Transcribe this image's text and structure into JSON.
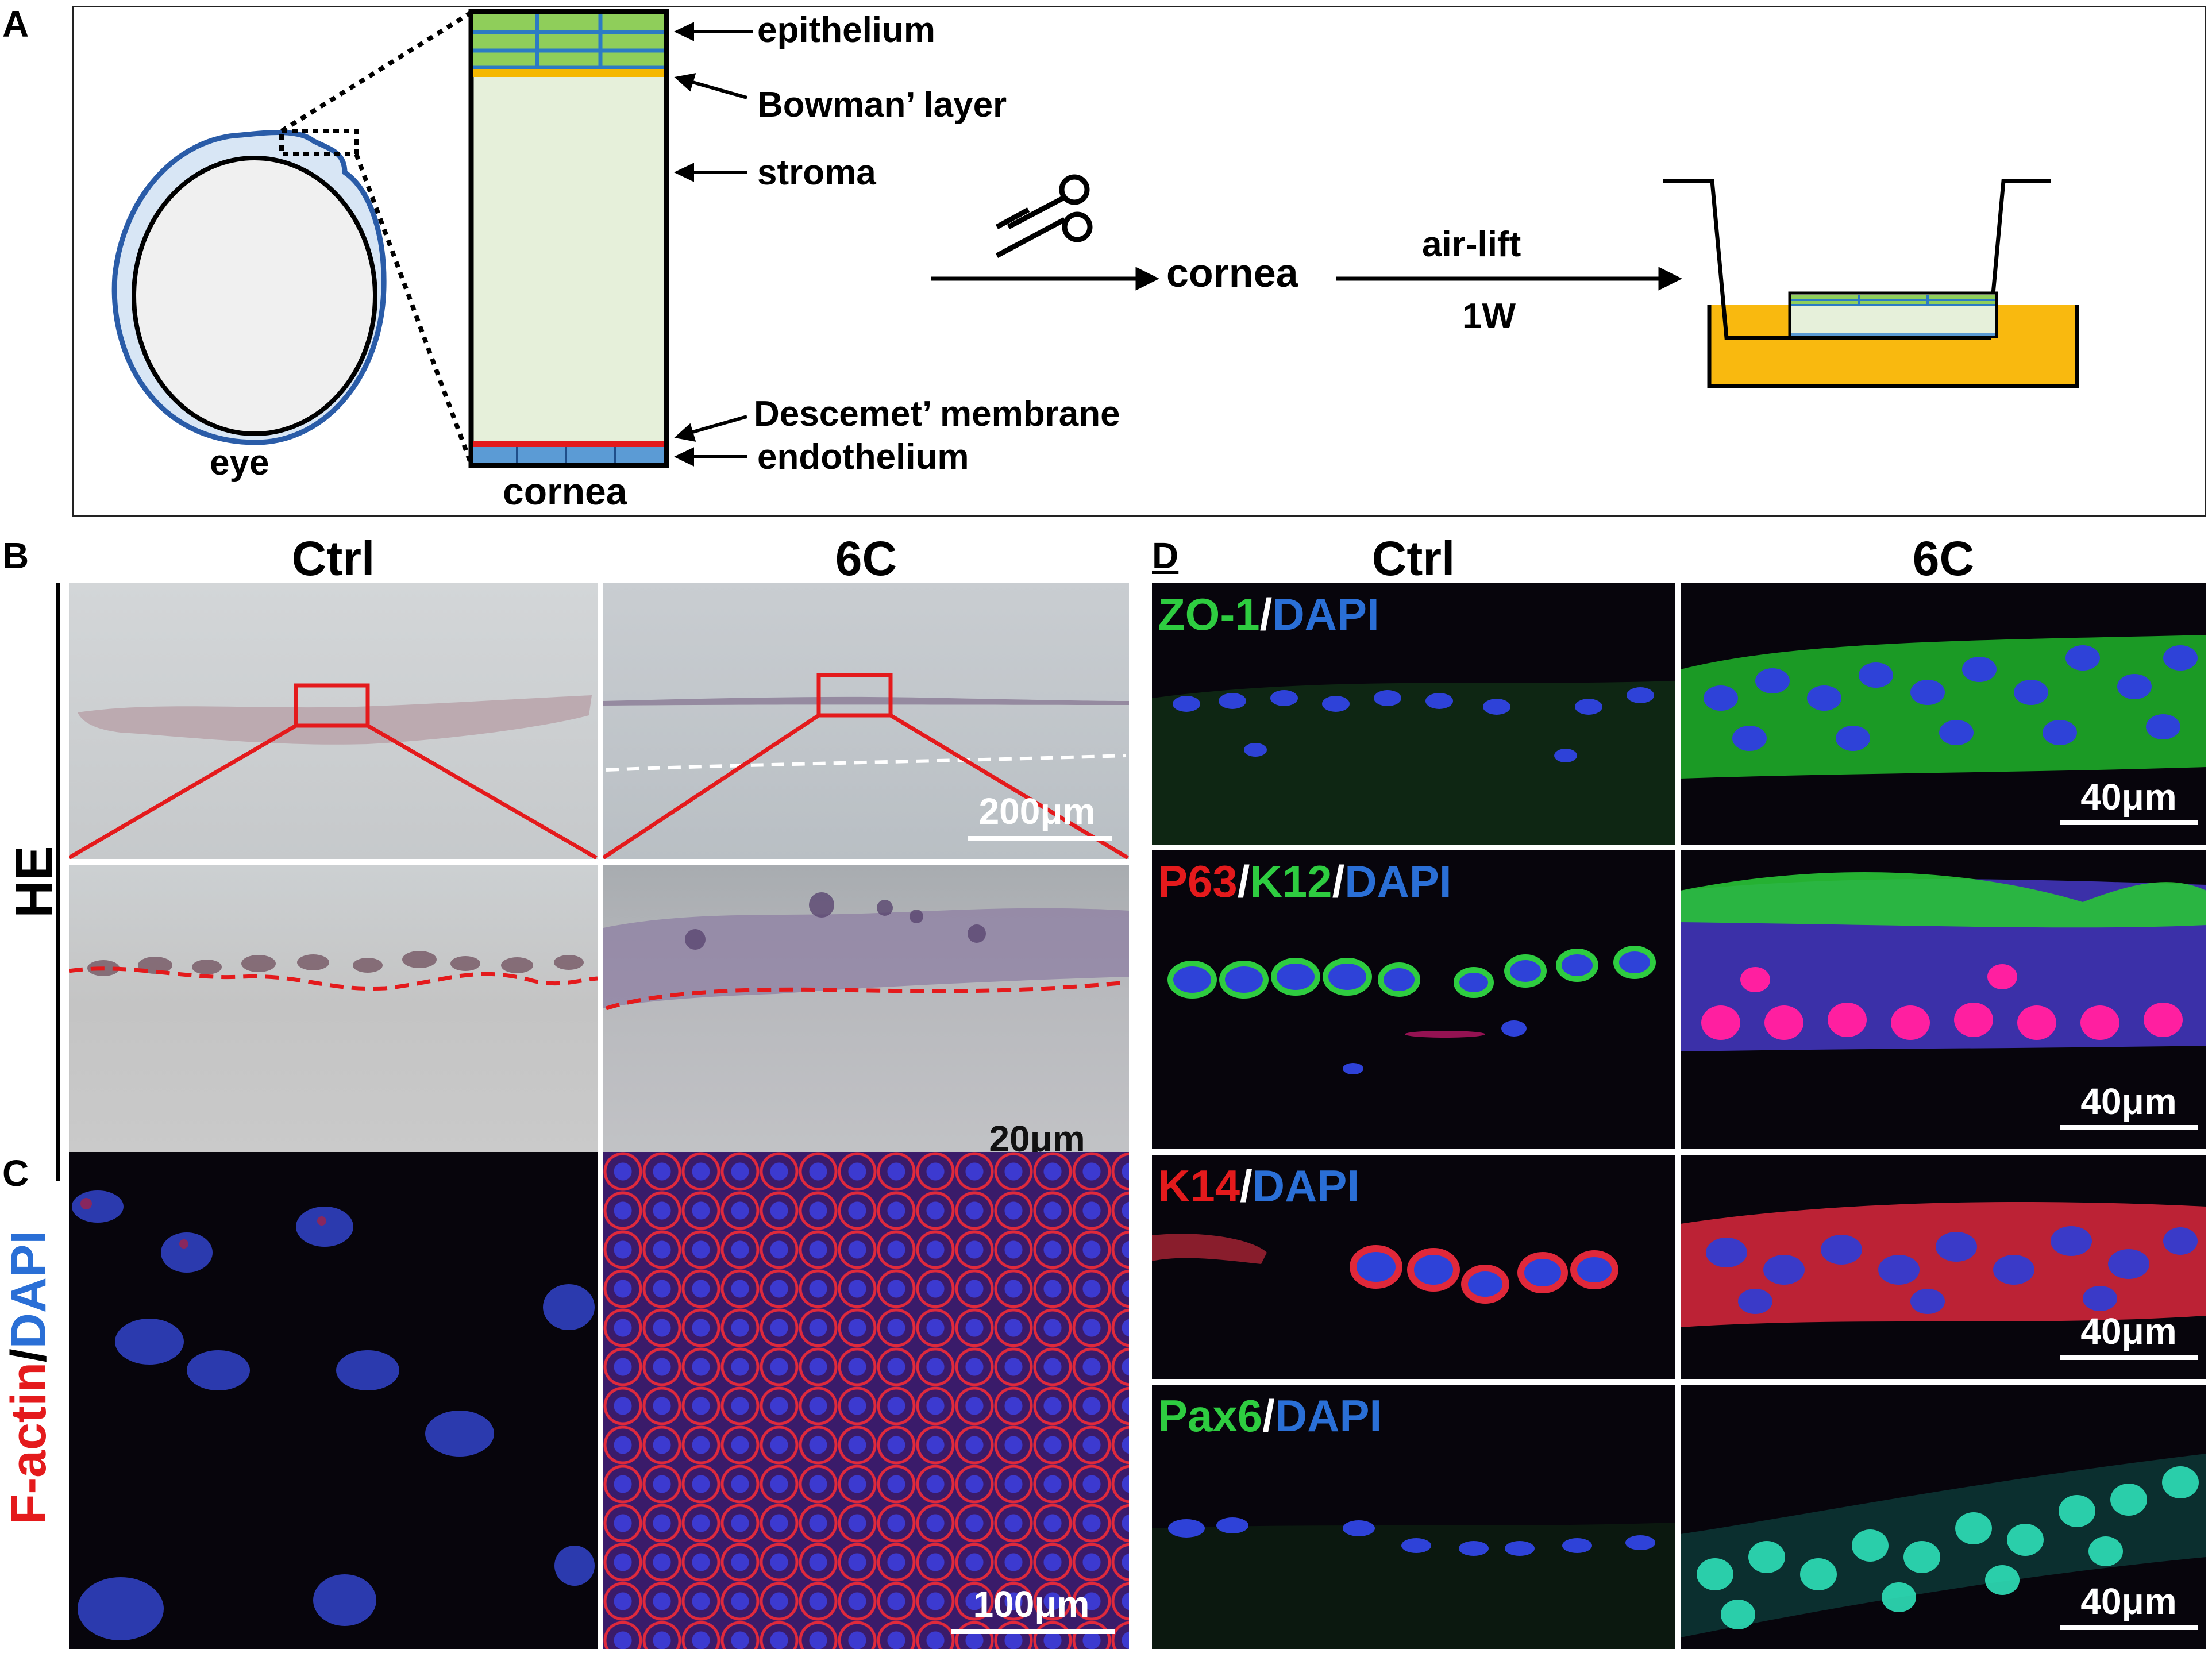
{
  "panels": {
    "A": "A",
    "B": "B",
    "C": "C",
    "D": "D"
  },
  "panel_a": {
    "eye_label": "eye",
    "cornea_label": "cornea",
    "layers": {
      "epithelium": "epithelium",
      "bowman": "Bowman’ layer",
      "stroma": "stroma",
      "descemet": "Descemet’ membrane",
      "endothelium": "endothelium"
    },
    "step_cornea": "cornea",
    "airlift": "air-lift",
    "duration": "1W",
    "colors": {
      "epithelium": "#8fce5a",
      "epithelium_grid": "#2c7bc4",
      "bowman": "#f5b800",
      "stroma": "#e6f0da",
      "descemet": "#e41a1c",
      "endothelium": "#5b9bd5",
      "medium": "#f9b90f",
      "eye_outer": "#2a5ca8"
    }
  },
  "panel_b": {
    "col_ctrl": "Ctrl",
    "col_6c": "6C",
    "row_label": "HE",
    "scale_top": "200μm",
    "scale_bottom": "20μm"
  },
  "panel_c": {
    "stain_red": "F-actin",
    "stain_sep": "/",
    "stain_blue": "DAPI",
    "scale": "100μm"
  },
  "panel_d": {
    "col_ctrl": "Ctrl",
    "col_6c": "6C",
    "rows": [
      {
        "m1": "ZO-1",
        "s1": "/",
        "m2": "DAPI",
        "m3": "",
        "s2": "",
        "scale": "40μm"
      },
      {
        "m1": "P63",
        "s1": "/",
        "m2": "K12",
        "s2": "/",
        "m3": "DAPI",
        "scale": "40μm"
      },
      {
        "m1": "K14",
        "s1": "/",
        "m2": "DAPI",
        "m3": "",
        "s2": "",
        "scale": "40μm"
      },
      {
        "m1": "Pax6",
        "s1": "/",
        "m2": "DAPI",
        "m3": "",
        "s2": "",
        "scale": "40μm"
      }
    ]
  }
}
